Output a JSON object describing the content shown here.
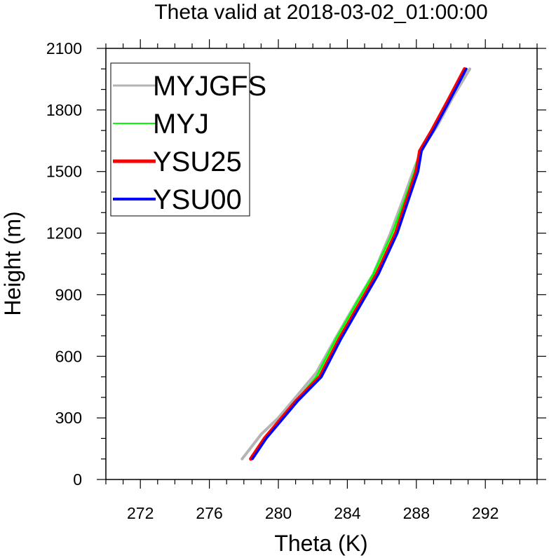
{
  "chart_data": {
    "type": "line",
    "title": "Theta valid at 2018-03-02_01:00:00",
    "xlabel": "Theta (K)",
    "ylabel": "Height (m)",
    "xlim": [
      270,
      295
    ],
    "ylim": [
      0,
      2100
    ],
    "xticks": [
      272,
      276,
      280,
      284,
      288,
      292
    ],
    "yticks": [
      0,
      300,
      600,
      900,
      1200,
      1500,
      1800,
      2100
    ],
    "grid": false,
    "legend_position": "top-left",
    "series": [
      {
        "name": "MYJGFS",
        "color": "#b4b4b4",
        "points": [
          [
            277.9,
            100
          ],
          [
            279.0,
            220
          ],
          [
            280.0,
            300
          ],
          [
            281.0,
            400
          ],
          [
            282.2,
            520
          ],
          [
            283.4,
            700
          ],
          [
            284.5,
            860
          ],
          [
            285.5,
            1000
          ],
          [
            286.5,
            1200
          ],
          [
            287.3,
            1380
          ],
          [
            287.9,
            1520
          ],
          [
            288.4,
            1620
          ],
          [
            289.2,
            1720
          ],
          [
            290.1,
            1860
          ],
          [
            291.1,
            2000
          ]
        ]
      },
      {
        "name": "MYJ",
        "color": "#00ff00",
        "points": [
          [
            278.4,
            100
          ],
          [
            279.2,
            200
          ],
          [
            280.0,
            280
          ],
          [
            281.0,
            380
          ],
          [
            282.2,
            500
          ],
          [
            283.3,
            680
          ],
          [
            284.4,
            840
          ],
          [
            285.5,
            1000
          ],
          [
            286.6,
            1200
          ],
          [
            287.4,
            1380
          ],
          [
            287.9,
            1500
          ],
          [
            288.2,
            1600
          ],
          [
            288.9,
            1700
          ],
          [
            289.8,
            1840
          ],
          [
            290.8,
            2000
          ]
        ]
      },
      {
        "name": "YSU25",
        "color": "#ff0000",
        "points": [
          [
            278.4,
            100
          ],
          [
            279.2,
            200
          ],
          [
            280.0,
            280
          ],
          [
            281.0,
            380
          ],
          [
            282.4,
            500
          ],
          [
            283.5,
            680
          ],
          [
            284.6,
            840
          ],
          [
            285.7,
            1000
          ],
          [
            286.8,
            1200
          ],
          [
            287.6,
            1400
          ],
          [
            288.0,
            1500
          ],
          [
            288.2,
            1600
          ],
          [
            288.9,
            1700
          ],
          [
            289.8,
            1840
          ],
          [
            290.8,
            2000
          ]
        ]
      },
      {
        "name": "YSU00",
        "color": "#0000ff",
        "points": [
          [
            278.5,
            100
          ],
          [
            279.3,
            200
          ],
          [
            280.1,
            280
          ],
          [
            281.1,
            380
          ],
          [
            282.5,
            500
          ],
          [
            283.6,
            680
          ],
          [
            284.7,
            840
          ],
          [
            285.8,
            1000
          ],
          [
            286.9,
            1200
          ],
          [
            287.7,
            1400
          ],
          [
            288.1,
            1500
          ],
          [
            288.3,
            1600
          ],
          [
            289.0,
            1700
          ],
          [
            289.9,
            1840
          ],
          [
            290.9,
            2000
          ]
        ]
      }
    ]
  }
}
